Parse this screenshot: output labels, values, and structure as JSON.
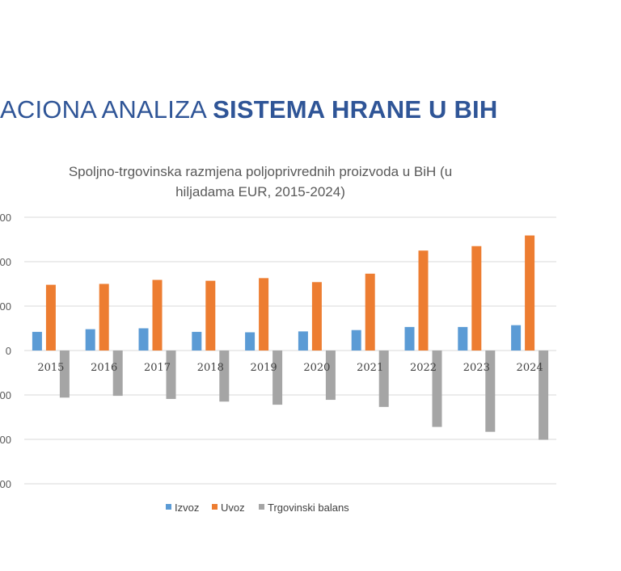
{
  "slide": {
    "title_plain": "ACIONA ANALIZA ",
    "title_bold": "SISTEMA HRANE U BIH"
  },
  "colors": {
    "izvoz": "#5b9bd5",
    "uvoz": "#ed7d31",
    "balans": "#a5a5a5",
    "grid": "#d9d9d9",
    "title": "#2f5597"
  },
  "chart_data": {
    "type": "bar",
    "title": "Spoljno-trgovinska razmjena poljoprivrednih proizvoda u BiH (u hiljadama EUR, 2015-2024)",
    "title_lines": [
      "Spoljno-trgovinska razmjena poljoprivrednih proizvoda u BiH (u",
      "hiljadama EUR, 2015-2024)"
    ],
    "categories": [
      "2015",
      "2016",
      "2017",
      "2018",
      "2019",
      "2020",
      "2021",
      "2022",
      "2023",
      "2024"
    ],
    "ylim": [
      -3000000,
      3000000
    ],
    "yticks": [
      -3000000,
      -2000000,
      -1000000,
      0,
      1000000,
      2000000,
      3000000
    ],
    "ytick_labels": [
      "000",
      "000",
      "000",
      "0",
      "000",
      "000",
      "000"
    ],
    "series": [
      {
        "name": "Izvoz",
        "values": [
          420000,
          480000,
          500000,
          420000,
          410000,
          430000,
          460000,
          530000,
          530000,
          570000
        ]
      },
      {
        "name": "Uvoz",
        "values": [
          1480000,
          1500000,
          1590000,
          1570000,
          1630000,
          1540000,
          1730000,
          2250000,
          2350000,
          2590000
        ]
      },
      {
        "name": "Trgovinski balans",
        "values": [
          -1060000,
          -1020000,
          -1090000,
          -1150000,
          -1220000,
          -1110000,
          -1270000,
          -1720000,
          -1830000,
          -2010000
        ]
      }
    ],
    "legend_position": "bottom",
    "grid": true
  }
}
